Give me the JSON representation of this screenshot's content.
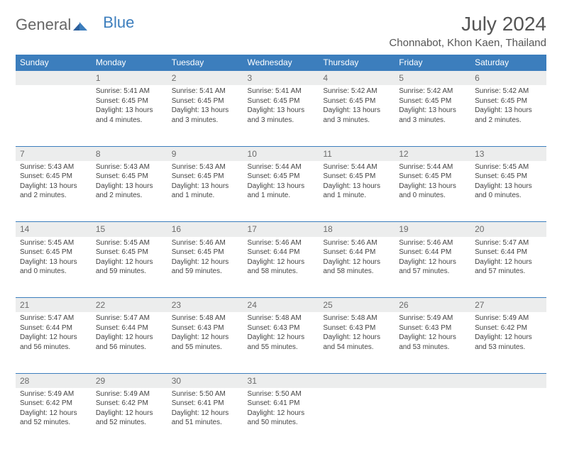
{
  "brand": {
    "part1": "General",
    "part2": "Blue"
  },
  "title": "July 2024",
  "location": "Chonnabot, Khon Kaen, Thailand",
  "colors": {
    "header_bg": "#3c7ebd",
    "daynum_bg": "#eceded",
    "row_border": "#3c7ebd",
    "text": "#444444",
    "muted": "#6b6b6b"
  },
  "day_headers": [
    "Sunday",
    "Monday",
    "Tuesday",
    "Wednesday",
    "Thursday",
    "Friday",
    "Saturday"
  ],
  "weeks": [
    {
      "nums": [
        "",
        "1",
        "2",
        "3",
        "4",
        "5",
        "6"
      ],
      "cells": [
        null,
        {
          "sunrise": "Sunrise: 5:41 AM",
          "sunset": "Sunset: 6:45 PM",
          "daylight": "Daylight: 13 hours and 4 minutes."
        },
        {
          "sunrise": "Sunrise: 5:41 AM",
          "sunset": "Sunset: 6:45 PM",
          "daylight": "Daylight: 13 hours and 3 minutes."
        },
        {
          "sunrise": "Sunrise: 5:41 AM",
          "sunset": "Sunset: 6:45 PM",
          "daylight": "Daylight: 13 hours and 3 minutes."
        },
        {
          "sunrise": "Sunrise: 5:42 AM",
          "sunset": "Sunset: 6:45 PM",
          "daylight": "Daylight: 13 hours and 3 minutes."
        },
        {
          "sunrise": "Sunrise: 5:42 AM",
          "sunset": "Sunset: 6:45 PM",
          "daylight": "Daylight: 13 hours and 3 minutes."
        },
        {
          "sunrise": "Sunrise: 5:42 AM",
          "sunset": "Sunset: 6:45 PM",
          "daylight": "Daylight: 13 hours and 2 minutes."
        }
      ]
    },
    {
      "nums": [
        "7",
        "8",
        "9",
        "10",
        "11",
        "12",
        "13"
      ],
      "cells": [
        {
          "sunrise": "Sunrise: 5:43 AM",
          "sunset": "Sunset: 6:45 PM",
          "daylight": "Daylight: 13 hours and 2 minutes."
        },
        {
          "sunrise": "Sunrise: 5:43 AM",
          "sunset": "Sunset: 6:45 PM",
          "daylight": "Daylight: 13 hours and 2 minutes."
        },
        {
          "sunrise": "Sunrise: 5:43 AM",
          "sunset": "Sunset: 6:45 PM",
          "daylight": "Daylight: 13 hours and 1 minute."
        },
        {
          "sunrise": "Sunrise: 5:44 AM",
          "sunset": "Sunset: 6:45 PM",
          "daylight": "Daylight: 13 hours and 1 minute."
        },
        {
          "sunrise": "Sunrise: 5:44 AM",
          "sunset": "Sunset: 6:45 PM",
          "daylight": "Daylight: 13 hours and 1 minute."
        },
        {
          "sunrise": "Sunrise: 5:44 AM",
          "sunset": "Sunset: 6:45 PM",
          "daylight": "Daylight: 13 hours and 0 minutes."
        },
        {
          "sunrise": "Sunrise: 5:45 AM",
          "sunset": "Sunset: 6:45 PM",
          "daylight": "Daylight: 13 hours and 0 minutes."
        }
      ]
    },
    {
      "nums": [
        "14",
        "15",
        "16",
        "17",
        "18",
        "19",
        "20"
      ],
      "cells": [
        {
          "sunrise": "Sunrise: 5:45 AM",
          "sunset": "Sunset: 6:45 PM",
          "daylight": "Daylight: 13 hours and 0 minutes."
        },
        {
          "sunrise": "Sunrise: 5:45 AM",
          "sunset": "Sunset: 6:45 PM",
          "daylight": "Daylight: 12 hours and 59 minutes."
        },
        {
          "sunrise": "Sunrise: 5:46 AM",
          "sunset": "Sunset: 6:45 PM",
          "daylight": "Daylight: 12 hours and 59 minutes."
        },
        {
          "sunrise": "Sunrise: 5:46 AM",
          "sunset": "Sunset: 6:44 PM",
          "daylight": "Daylight: 12 hours and 58 minutes."
        },
        {
          "sunrise": "Sunrise: 5:46 AM",
          "sunset": "Sunset: 6:44 PM",
          "daylight": "Daylight: 12 hours and 58 minutes."
        },
        {
          "sunrise": "Sunrise: 5:46 AM",
          "sunset": "Sunset: 6:44 PM",
          "daylight": "Daylight: 12 hours and 57 minutes."
        },
        {
          "sunrise": "Sunrise: 5:47 AM",
          "sunset": "Sunset: 6:44 PM",
          "daylight": "Daylight: 12 hours and 57 minutes."
        }
      ]
    },
    {
      "nums": [
        "21",
        "22",
        "23",
        "24",
        "25",
        "26",
        "27"
      ],
      "cells": [
        {
          "sunrise": "Sunrise: 5:47 AM",
          "sunset": "Sunset: 6:44 PM",
          "daylight": "Daylight: 12 hours and 56 minutes."
        },
        {
          "sunrise": "Sunrise: 5:47 AM",
          "sunset": "Sunset: 6:44 PM",
          "daylight": "Daylight: 12 hours and 56 minutes."
        },
        {
          "sunrise": "Sunrise: 5:48 AM",
          "sunset": "Sunset: 6:43 PM",
          "daylight": "Daylight: 12 hours and 55 minutes."
        },
        {
          "sunrise": "Sunrise: 5:48 AM",
          "sunset": "Sunset: 6:43 PM",
          "daylight": "Daylight: 12 hours and 55 minutes."
        },
        {
          "sunrise": "Sunrise: 5:48 AM",
          "sunset": "Sunset: 6:43 PM",
          "daylight": "Daylight: 12 hours and 54 minutes."
        },
        {
          "sunrise": "Sunrise: 5:49 AM",
          "sunset": "Sunset: 6:43 PM",
          "daylight": "Daylight: 12 hours and 53 minutes."
        },
        {
          "sunrise": "Sunrise: 5:49 AM",
          "sunset": "Sunset: 6:42 PM",
          "daylight": "Daylight: 12 hours and 53 minutes."
        }
      ]
    },
    {
      "nums": [
        "28",
        "29",
        "30",
        "31",
        "",
        "",
        ""
      ],
      "cells": [
        {
          "sunrise": "Sunrise: 5:49 AM",
          "sunset": "Sunset: 6:42 PM",
          "daylight": "Daylight: 12 hours and 52 minutes."
        },
        {
          "sunrise": "Sunrise: 5:49 AM",
          "sunset": "Sunset: 6:42 PM",
          "daylight": "Daylight: 12 hours and 52 minutes."
        },
        {
          "sunrise": "Sunrise: 5:50 AM",
          "sunset": "Sunset: 6:41 PM",
          "daylight": "Daylight: 12 hours and 51 minutes."
        },
        {
          "sunrise": "Sunrise: 5:50 AM",
          "sunset": "Sunset: 6:41 PM",
          "daylight": "Daylight: 12 hours and 50 minutes."
        },
        null,
        null,
        null
      ]
    }
  ]
}
